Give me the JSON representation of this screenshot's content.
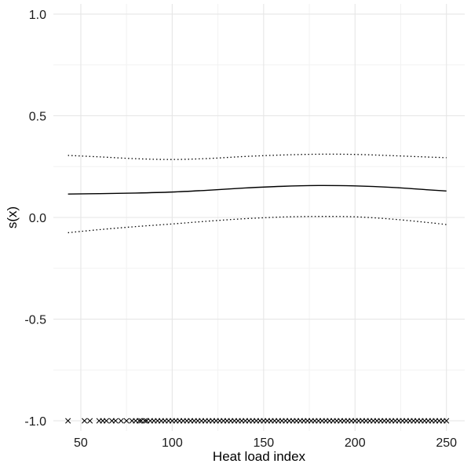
{
  "chart_data": {
    "type": "line",
    "title": "",
    "xlabel": "Heat load index",
    "ylabel": "s(x)",
    "xlim": [
      35,
      260
    ],
    "ylim": [
      -1.05,
      1.05
    ],
    "grid": true,
    "x_ticks": [
      {
        "value": 50,
        "label": "50"
      },
      {
        "value": 100,
        "label": "100"
      },
      {
        "value": 150,
        "label": "150"
      },
      {
        "value": 200,
        "label": "200"
      },
      {
        "value": 250,
        "label": "250"
      }
    ],
    "y_ticks": [
      {
        "value": 1.0,
        "label": "1.0"
      },
      {
        "value": 0.5,
        "label": "0.5"
      },
      {
        "value": 0.0,
        "label": "0.0"
      },
      {
        "value": -0.5,
        "label": "-0.5"
      },
      {
        "value": -1.0,
        "label": "-1.0"
      }
    ],
    "series": [
      {
        "role": "estimate",
        "style": "solid",
        "color": "#000000",
        "x": [
          43,
          60,
          80,
          100,
          120,
          140,
          160,
          180,
          200,
          220,
          240,
          250
        ],
        "y": [
          0.115,
          0.117,
          0.12,
          0.125,
          0.134,
          0.145,
          0.153,
          0.157,
          0.155,
          0.148,
          0.136,
          0.13
        ]
      },
      {
        "role": "upper-band",
        "style": "dotted",
        "color": "#000000",
        "x": [
          43,
          60,
          80,
          100,
          120,
          140,
          160,
          180,
          200,
          220,
          240,
          250
        ],
        "y": [
          0.305,
          0.298,
          0.289,
          0.285,
          0.29,
          0.3,
          0.307,
          0.311,
          0.31,
          0.304,
          0.297,
          0.294
        ]
      },
      {
        "role": "lower-band",
        "style": "dotted",
        "color": "#000000",
        "x": [
          43,
          60,
          80,
          100,
          120,
          140,
          160,
          180,
          200,
          220,
          240,
          250
        ],
        "y": [
          -0.075,
          -0.06,
          -0.045,
          -0.032,
          -0.018,
          -0.006,
          0.002,
          0.005,
          0.003,
          -0.008,
          -0.025,
          -0.035
        ]
      }
    ],
    "rug": {
      "y": -1.0,
      "marker": "x",
      "color": "#000000",
      "x": [
        43,
        52,
        55,
        60,
        62,
        64,
        67,
        69,
        72,
        75,
        78,
        80,
        82,
        83,
        85,
        86,
        88,
        90,
        92,
        94,
        96,
        98,
        100,
        102,
        104,
        106,
        108,
        110,
        112,
        114,
        116,
        118,
        120,
        122,
        124,
        126,
        128,
        130,
        132,
        134,
        136,
        138,
        140,
        142,
        144,
        146,
        148,
        150,
        152,
        154,
        156,
        158,
        160,
        162,
        164,
        166,
        168,
        170,
        172,
        174,
        176,
        178,
        180,
        182,
        184,
        186,
        188,
        190,
        192,
        194,
        196,
        198,
        200,
        202,
        204,
        206,
        208,
        210,
        212,
        214,
        216,
        218,
        220,
        222,
        224,
        226,
        228,
        230,
        232,
        234,
        236,
        238,
        240,
        242,
        244,
        246,
        248,
        250
      ]
    }
  }
}
